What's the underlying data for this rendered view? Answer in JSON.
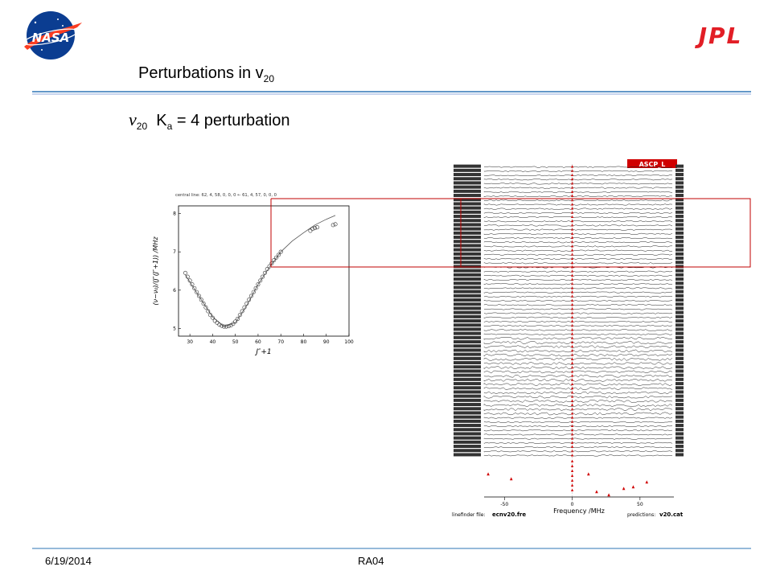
{
  "header": {
    "title_main": "Perturbations in v",
    "title_sub": "20",
    "subtitle_symbol": "ν",
    "subtitle_sub": "20",
    "subtitle_rest": "K",
    "subtitle_ka_sub": "a",
    "subtitle_tail": " = 4 perturbation",
    "nasa_logo_text": "NASA",
    "jpl_logo_text": "JPL",
    "brand_line_color": "#2e75b6"
  },
  "footer": {
    "date": "6/19/2014",
    "code": "RA04"
  },
  "left_plot": {
    "header_text": "central line:      62, 4, 58, 0, 0, 0 ←     61, 4, 57, 0, 0, 0",
    "xlabel": "J″+1",
    "ylabel": "(ν−ν₀)/(J″(J″+1)) /MHz",
    "xticks": [
      "30",
      "40",
      "50",
      "60",
      "70",
      "80",
      "90",
      "100"
    ],
    "yticks": [
      "5",
      "6",
      "7",
      "8"
    ],
    "xlim": [
      25,
      100
    ],
    "ylim": [
      4.8,
      8.2
    ],
    "points": [
      [
        28,
        6.45
      ],
      [
        29,
        6.35
      ],
      [
        30,
        6.25
      ],
      [
        31,
        6.15
      ],
      [
        32,
        6.05
      ],
      [
        33,
        5.95
      ],
      [
        34,
        5.85
      ],
      [
        35,
        5.75
      ],
      [
        36,
        5.65
      ],
      [
        37,
        5.55
      ],
      [
        38,
        5.45
      ],
      [
        39,
        5.35
      ],
      [
        40,
        5.28
      ],
      [
        41,
        5.2
      ],
      [
        42,
        5.15
      ],
      [
        43,
        5.1
      ],
      [
        44,
        5.07
      ],
      [
        45,
        5.05
      ],
      [
        46,
        5.05
      ],
      [
        47,
        5.06
      ],
      [
        48,
        5.08
      ],
      [
        49,
        5.12
      ],
      [
        50,
        5.18
      ],
      [
        51,
        5.25
      ],
      [
        52,
        5.35
      ],
      [
        53,
        5.45
      ],
      [
        54,
        5.55
      ],
      [
        55,
        5.65
      ],
      [
        56,
        5.75
      ],
      [
        57,
        5.85
      ],
      [
        58,
        5.95
      ],
      [
        59,
        6.05
      ],
      [
        60,
        6.15
      ],
      [
        61,
        6.25
      ],
      [
        62,
        6.35
      ],
      [
        63,
        6.45
      ],
      [
        64,
        6.55
      ],
      [
        65,
        6.62
      ],
      [
        66,
        6.7
      ],
      [
        67,
        6.78
      ],
      [
        68,
        6.85
      ],
      [
        69,
        6.92
      ],
      [
        70,
        7.0
      ],
      [
        83,
        7.55
      ],
      [
        84,
        7.6
      ],
      [
        85,
        7.62
      ],
      [
        86,
        7.64
      ],
      [
        93,
        7.7
      ],
      [
        94,
        7.72
      ]
    ],
    "curve": [
      [
        28,
        6.4
      ],
      [
        35,
        5.75
      ],
      [
        40,
        5.3
      ],
      [
        45,
        5.05
      ],
      [
        50,
        5.15
      ],
      [
        55,
        5.6
      ],
      [
        60,
        6.15
      ],
      [
        65,
        6.6
      ],
      [
        70,
        7.0
      ],
      [
        75,
        7.28
      ],
      [
        80,
        7.5
      ],
      [
        85,
        7.7
      ],
      [
        90,
        7.85
      ],
      [
        94,
        7.95
      ]
    ]
  },
  "right_plot": {
    "badge": "ASCP_L",
    "xlabel": "Frequency /MHz",
    "xticks": [
      "-50",
      "0",
      "50"
    ],
    "xlim": [
      -65,
      75
    ],
    "linefinder_label": "linefinder file:",
    "linefinder_file": "ecnv20.fre",
    "predictions_label": "predictions:",
    "predictions_file": "v20.cat",
    "rows": 70,
    "seed": 7,
    "markers_below": [
      [
        -62,
        22
      ],
      [
        -45,
        28
      ],
      [
        12,
        22
      ],
      [
        18,
        44
      ],
      [
        27,
        48
      ],
      [
        38,
        40
      ],
      [
        45,
        38
      ],
      [
        55,
        32
      ]
    ]
  },
  "highlight_color": "#c00000",
  "marker_color": "#d00000"
}
